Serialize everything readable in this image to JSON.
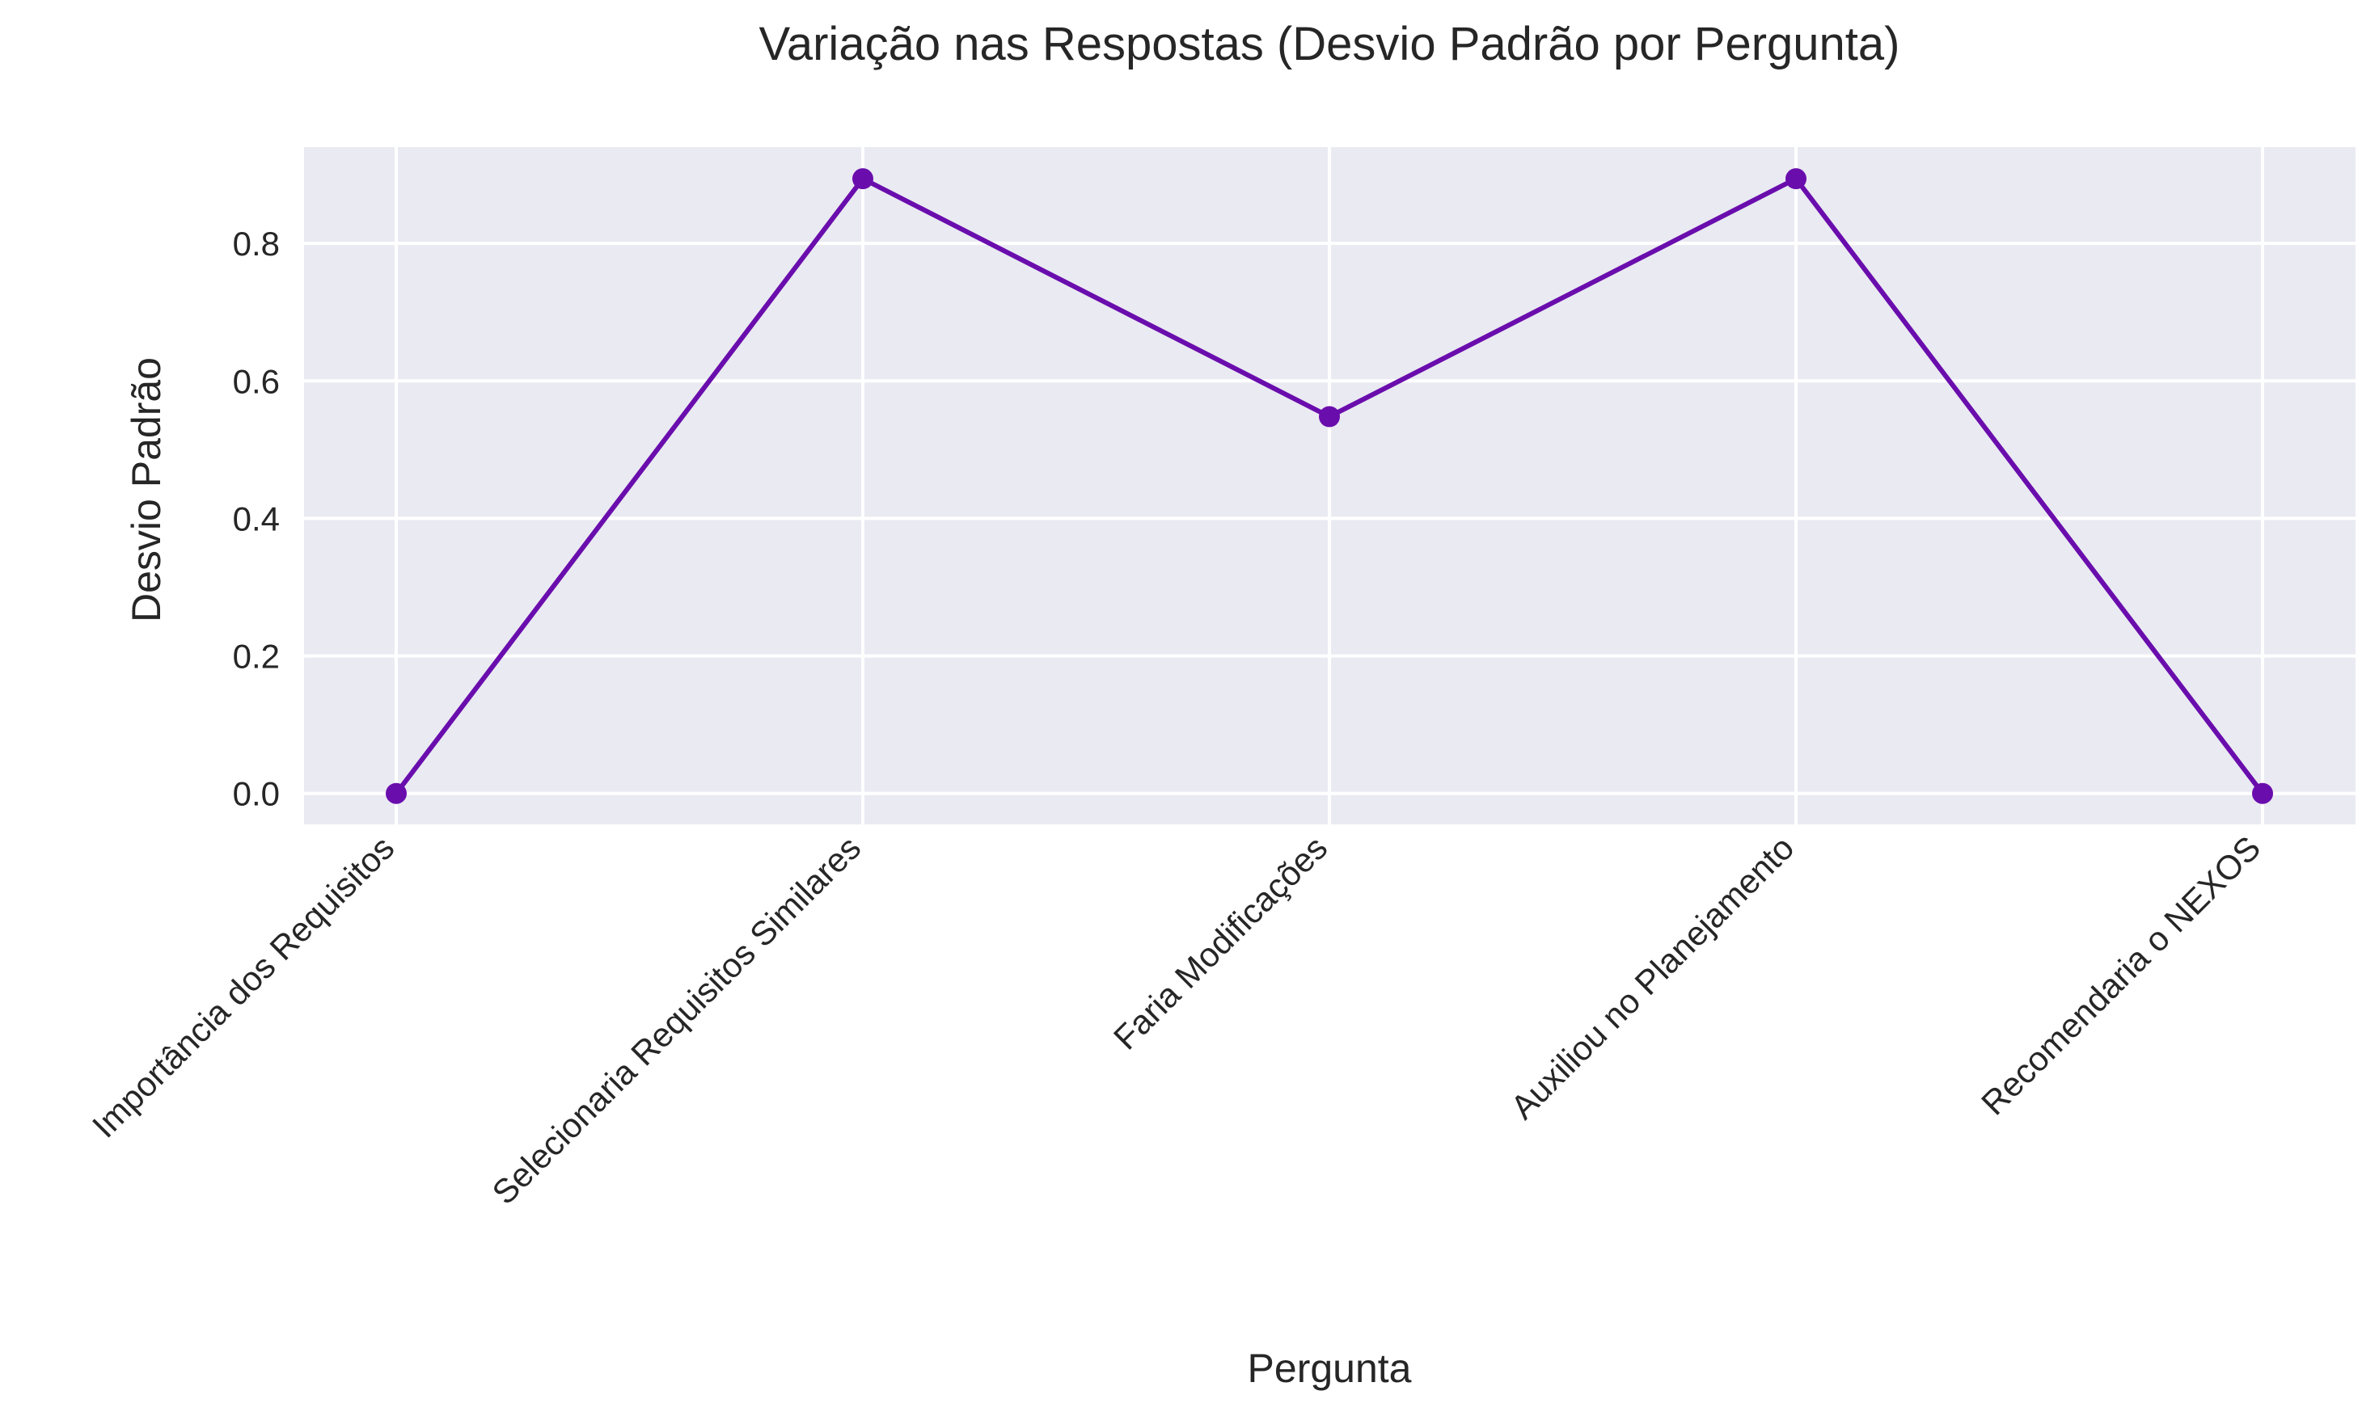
{
  "chart_data": {
    "type": "line",
    "title": "Variação nas Respostas (Desvio Padrão por Pergunta)",
    "xlabel": "Pergunta",
    "ylabel": "Desvio Padrão",
    "categories": [
      "Importância dos Requisitos",
      "Selecionaria Requisitos Similares",
      "Faria Modificações",
      "Auxiliou no Planejamento",
      "Recomendaria o NEXOS"
    ],
    "series": [
      {
        "values": [
          0.0,
          0.894,
          0.548,
          0.894,
          0.0
        ]
      }
    ],
    "ylim": [
      -0.045,
      0.94
    ],
    "yticks": [
      0.0,
      0.2,
      0.4,
      0.6,
      0.8
    ],
    "ytick_labels": [
      "0.0",
      "0.2",
      "0.4",
      "0.6",
      "0.8"
    ],
    "grid": true,
    "colors": {
      "line": "#6a0dad",
      "plot_background": "#eaeaf2",
      "grid": "#ffffff"
    }
  }
}
